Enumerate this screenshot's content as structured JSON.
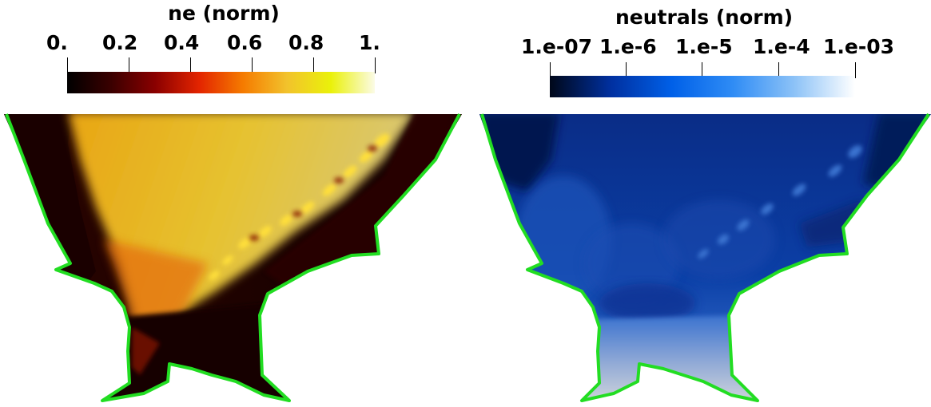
{
  "left_panel": {
    "title": "ne (norm)",
    "ticks": [
      "0.",
      "0.2",
      "0.4",
      "0.6",
      "0.8",
      "1."
    ],
    "colormap": [
      "#000000",
      "#3a0000",
      "#8a0000",
      "#e32400",
      "#f57b00",
      "#f2c22c",
      "#eaf10a",
      "#fbfbe6"
    ]
  },
  "right_panel": {
    "title": "neutrals (norm)",
    "ticks": [
      "1.e-07",
      "1.e-6",
      "1.e-5",
      "1.e-4",
      "1.e-03"
    ],
    "scale": "log",
    "colormap": [
      "#000819",
      "#0030a0",
      "#0060e8",
      "#2f8cf5",
      "#8cc2f7",
      "#ffffff"
    ]
  },
  "colors": {
    "boundary": "#22dd22",
    "background": "#ffffff"
  }
}
